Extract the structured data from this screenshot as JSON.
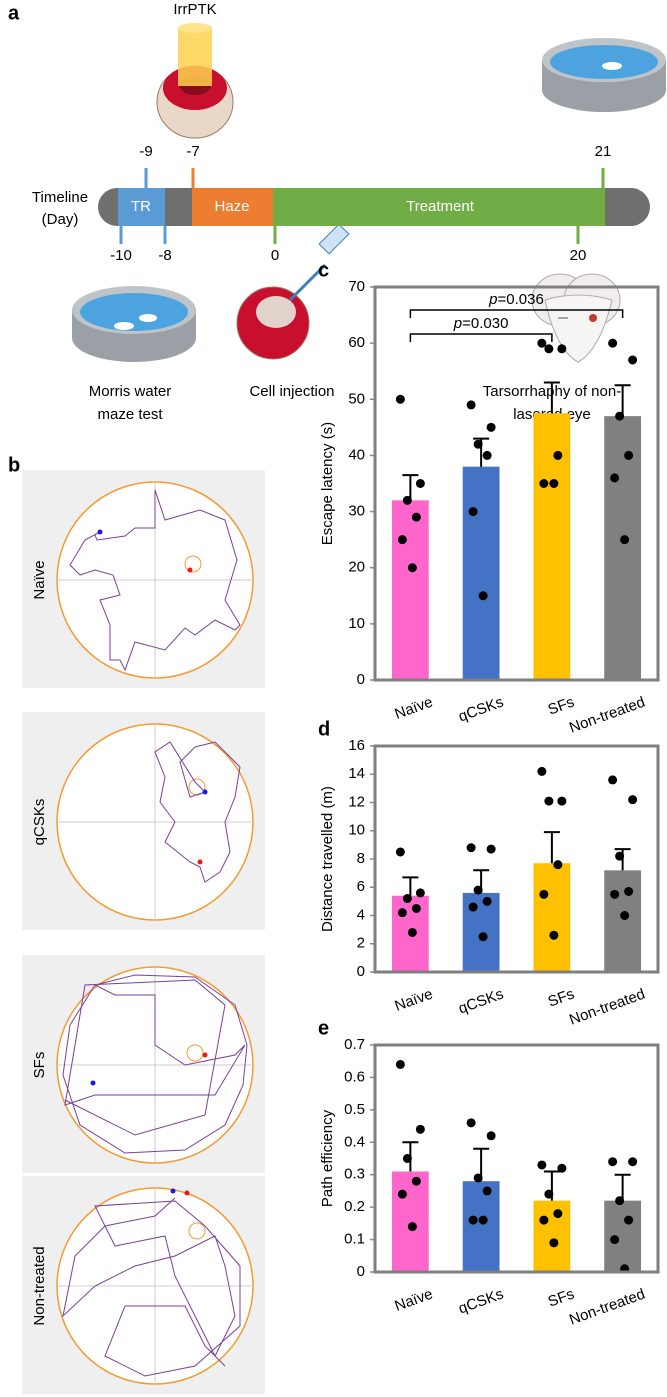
{
  "figure": {
    "panel_a": {
      "label": "a",
      "icon_label": "IrrPTK",
      "timeline_label": [
        "Timeline",
        "(Day)"
      ],
      "days_above": [
        "-9",
        "-7",
        "21"
      ],
      "days_below": [
        "-10",
        "-8",
        "0",
        "20"
      ],
      "phases": [
        "TR",
        "Haze",
        "Treatment"
      ],
      "captions": [
        [
          "Morris water",
          "maze test"
        ],
        [
          "Cell injection"
        ],
        [
          "Tarsorrhaphy of non-",
          "lasered eye"
        ]
      ]
    },
    "panel_b": {
      "label": "b",
      "groups": [
        "Naïve",
        "qCSKs",
        "SFs",
        "Non-treated"
      ]
    }
  },
  "chart_data": [
    {
      "type": "bar",
      "panel": "c",
      "ylabel": "Escape latency (s)",
      "categories": [
        "Naïve",
        "qCSKs",
        "SFs",
        "Non-treated"
      ],
      "colors": [
        "#ff66cc",
        "#4472c4",
        "#ffc000",
        "#808080"
      ],
      "values": [
        32,
        38,
        47.5,
        47
      ],
      "errors": [
        4.5,
        5,
        5.5,
        5.5
      ],
      "points": [
        [
          50,
          35,
          32,
          29,
          25,
          20
        ],
        [
          49,
          45,
          42,
          40,
          30,
          15
        ],
        [
          60,
          59,
          59,
          40,
          35,
          35
        ],
        [
          60,
          57,
          47,
          40,
          36,
          25
        ]
      ],
      "ylim": [
        0,
        70
      ],
      "yticks": [
        0,
        10,
        20,
        30,
        40,
        50,
        60,
        70
      ],
      "annotations": [
        {
          "italic": "p",
          "text": "=0.030"
        },
        {
          "italic": "p",
          "text": "=0.036"
        }
      ]
    },
    {
      "type": "bar",
      "panel": "d",
      "ylabel": "Distance travelled (m)",
      "categories": [
        "Naïve",
        "qCSKs",
        "SFs",
        "Non-treated"
      ],
      "colors": [
        "#ff66cc",
        "#4472c4",
        "#ffc000",
        "#808080"
      ],
      "values": [
        5.4,
        5.6,
        7.7,
        7.2
      ],
      "errors": [
        1.3,
        1.6,
        2.2,
        1.5
      ],
      "points": [
        [
          8.5,
          5.6,
          5.2,
          4.5,
          4.2,
          2.8
        ],
        [
          8.8,
          8.7,
          5.8,
          5.0,
          4.6,
          2.5
        ],
        [
          14.2,
          12.1,
          12.1,
          7.6,
          5.5,
          2.6
        ],
        [
          13.6,
          12.2,
          8.2,
          5.7,
          5.5,
          4.0
        ]
      ],
      "ylim": [
        0,
        16
      ],
      "yticks": [
        0,
        2,
        4,
        6,
        8,
        10,
        12,
        14,
        16
      ]
    },
    {
      "type": "bar",
      "panel": "e",
      "ylabel": "Path efficiency",
      "categories": [
        "Naïve",
        "qCSKs",
        "SFs",
        "Non-treated"
      ],
      "colors": [
        "#ff66cc",
        "#4472c4",
        "#ffc000",
        "#808080"
      ],
      "values": [
        0.31,
        0.28,
        0.22,
        0.22
      ],
      "errors": [
        0.09,
        0.1,
        0.09,
        0.08
      ],
      "points": [
        [
          0.64,
          0.44,
          0.35,
          0.28,
          0.24,
          0.14
        ],
        [
          0.46,
          0.42,
          0.29,
          0.25,
          0.16,
          0.16
        ],
        [
          0.33,
          0.32,
          0.24,
          0.18,
          0.16,
          0.09
        ],
        [
          0.34,
          0.34,
          0.22,
          0.16,
          0.1,
          0.01
        ]
      ],
      "ylim": [
        0,
        0.7
      ],
      "yticks": [
        0,
        0.1,
        0.2,
        0.3,
        0.4,
        0.5,
        0.6,
        0.7
      ]
    }
  ]
}
